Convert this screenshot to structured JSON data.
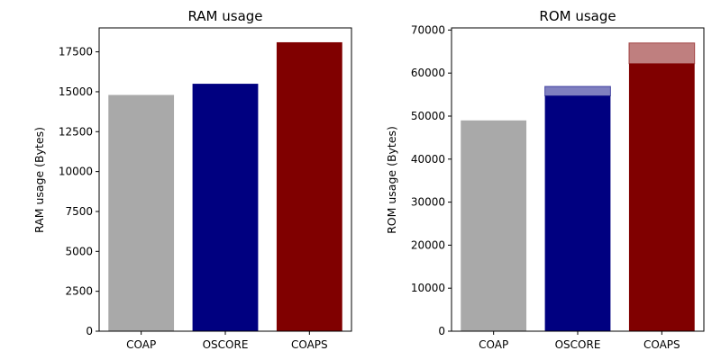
{
  "chart_data": [
    {
      "type": "bar",
      "title": "RAM usage",
      "xlabel": "",
      "ylabel": "RAM usage (Bytes)",
      "categories": [
        "COAP",
        "OSCORE",
        "COAPS"
      ],
      "values": [
        14800,
        15500,
        18100
      ],
      "colors": [
        "#a9a9a9",
        "#000080",
        "#800000"
      ],
      "ylim": [
        0,
        19000
      ],
      "yticks": [
        0,
        2500,
        5000,
        7500,
        10000,
        12500,
        15000,
        17500
      ],
      "ytick_labels": [
        "0",
        "2500",
        "5000",
        "7500",
        "10000",
        "12500",
        "15000",
        "17500"
      ],
      "grid": false
    },
    {
      "type": "bar",
      "title": "ROM usage",
      "xlabel": "",
      "ylabel": "ROM usage (Bytes)",
      "categories": [
        "COAP",
        "OSCORE",
        "COAPS"
      ],
      "values": [
        49000,
        54700,
        62200
      ],
      "stacked_extra": [
        0,
        2200,
        4800
      ],
      "colors": [
        "#a9a9a9",
        "#000080",
        "#800000"
      ],
      "ylim": [
        0,
        70500
      ],
      "yticks": [
        0,
        10000,
        20000,
        30000,
        40000,
        50000,
        60000,
        70000
      ],
      "ytick_labels": [
        "0",
        "10000",
        "20000",
        "30000",
        "40000",
        "50000",
        "60000",
        "70000"
      ],
      "grid": false
    }
  ]
}
